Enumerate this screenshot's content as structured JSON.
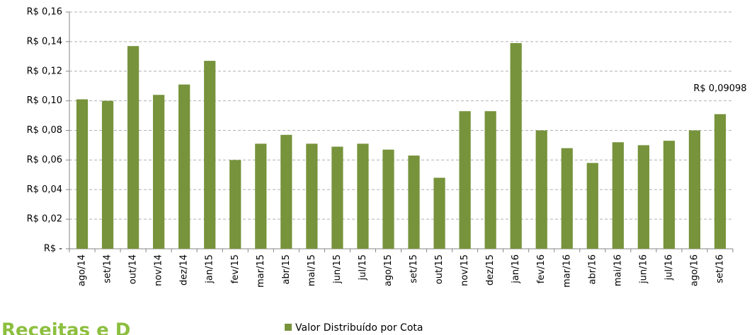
{
  "chart_data": {
    "type": "bar",
    "categories": [
      "ago/14",
      "set/14",
      "out/14",
      "nov/14",
      "dez/14",
      "jan/15",
      "fev/15",
      "mar/15",
      "abr/15",
      "mai/15",
      "jun/15",
      "jul/15",
      "ago/15",
      "set/15",
      "out/15",
      "nov/15",
      "dez/15",
      "jan/16",
      "fev/16",
      "mar/16",
      "abr/16",
      "mai/16",
      "jun/16",
      "jul/16",
      "ago/16",
      "set/16"
    ],
    "series": [
      {
        "name": "Valor Distribuído por Cota",
        "color": "#77933c",
        "values": [
          0.101,
          0.1,
          0.137,
          0.104,
          0.111,
          0.127,
          0.06,
          0.071,
          0.077,
          0.071,
          0.069,
          0.071,
          0.067,
          0.063,
          0.048,
          0.093,
          0.093,
          0.139,
          0.08,
          0.068,
          0.058,
          0.072,
          0.07,
          0.073,
          0.08,
          0.09098
        ],
        "value_labels": [
          null,
          null,
          null,
          null,
          null,
          null,
          null,
          null,
          null,
          null,
          null,
          null,
          null,
          null,
          null,
          null,
          null,
          null,
          null,
          null,
          null,
          null,
          null,
          null,
          null,
          "R$ 0,09098"
        ]
      }
    ],
    "ylim": [
      0,
      0.16
    ],
    "yticks": [
      {
        "value": 0,
        "label": "R$ -"
      },
      {
        "value": 0.02,
        "label": "R$ 0,02"
      },
      {
        "value": 0.04,
        "label": "R$ 0,04"
      },
      {
        "value": 0.06,
        "label": "R$ 0,06"
      },
      {
        "value": 0.08,
        "label": "R$ 0,08"
      },
      {
        "value": 0.1,
        "label": "R$ 0,10"
      },
      {
        "value": 0.12,
        "label": "R$ 0,12"
      },
      {
        "value": 0.14,
        "label": "R$ 0,14"
      },
      {
        "value": 0.16,
        "label": "R$ 0,16"
      }
    ],
    "grid": true,
    "legend": "bottom"
  },
  "footer_heading": "Receitas e D"
}
